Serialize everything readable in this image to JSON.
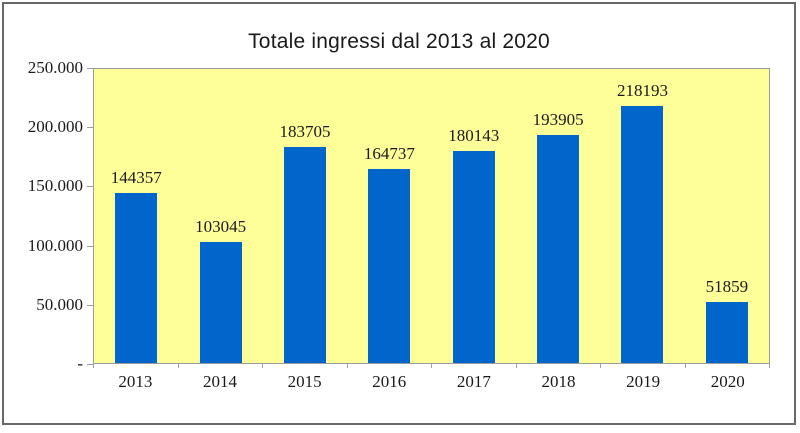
{
  "title": "Totale ingressi dal 2013 al 2020",
  "chart_data": {
    "type": "bar",
    "title": "Totale ingressi dal 2013 al 2020",
    "categories": [
      "2013",
      "2014",
      "2015",
      "2016",
      "2017",
      "2018",
      "2019",
      "2020"
    ],
    "values": [
      144357,
      103045,
      183705,
      164737,
      180143,
      193905,
      218193,
      51859
    ],
    "data_labels": [
      "144357",
      "103045",
      "183705",
      "164737",
      "180143",
      "193905",
      "218193",
      "51859"
    ],
    "xlabel": "",
    "ylabel": "",
    "ylim": [
      0,
      250000
    ],
    "yticks": [
      {
        "value": 0,
        "label": "-"
      },
      {
        "value": 50000,
        "label": "50.000"
      },
      {
        "value": 100000,
        "label": "100.000"
      },
      {
        "value": 150000,
        "label": "150.000"
      },
      {
        "value": 200000,
        "label": "200.000"
      },
      {
        "value": 250000,
        "label": "250.000"
      }
    ],
    "grid": false,
    "legend": "none"
  },
  "colors": {
    "bar": "#0066cc",
    "plot_background": "#ffff99",
    "axis_line": "#9c9c9c",
    "frame_border": "#686868",
    "text": "#1a1a1a"
  }
}
